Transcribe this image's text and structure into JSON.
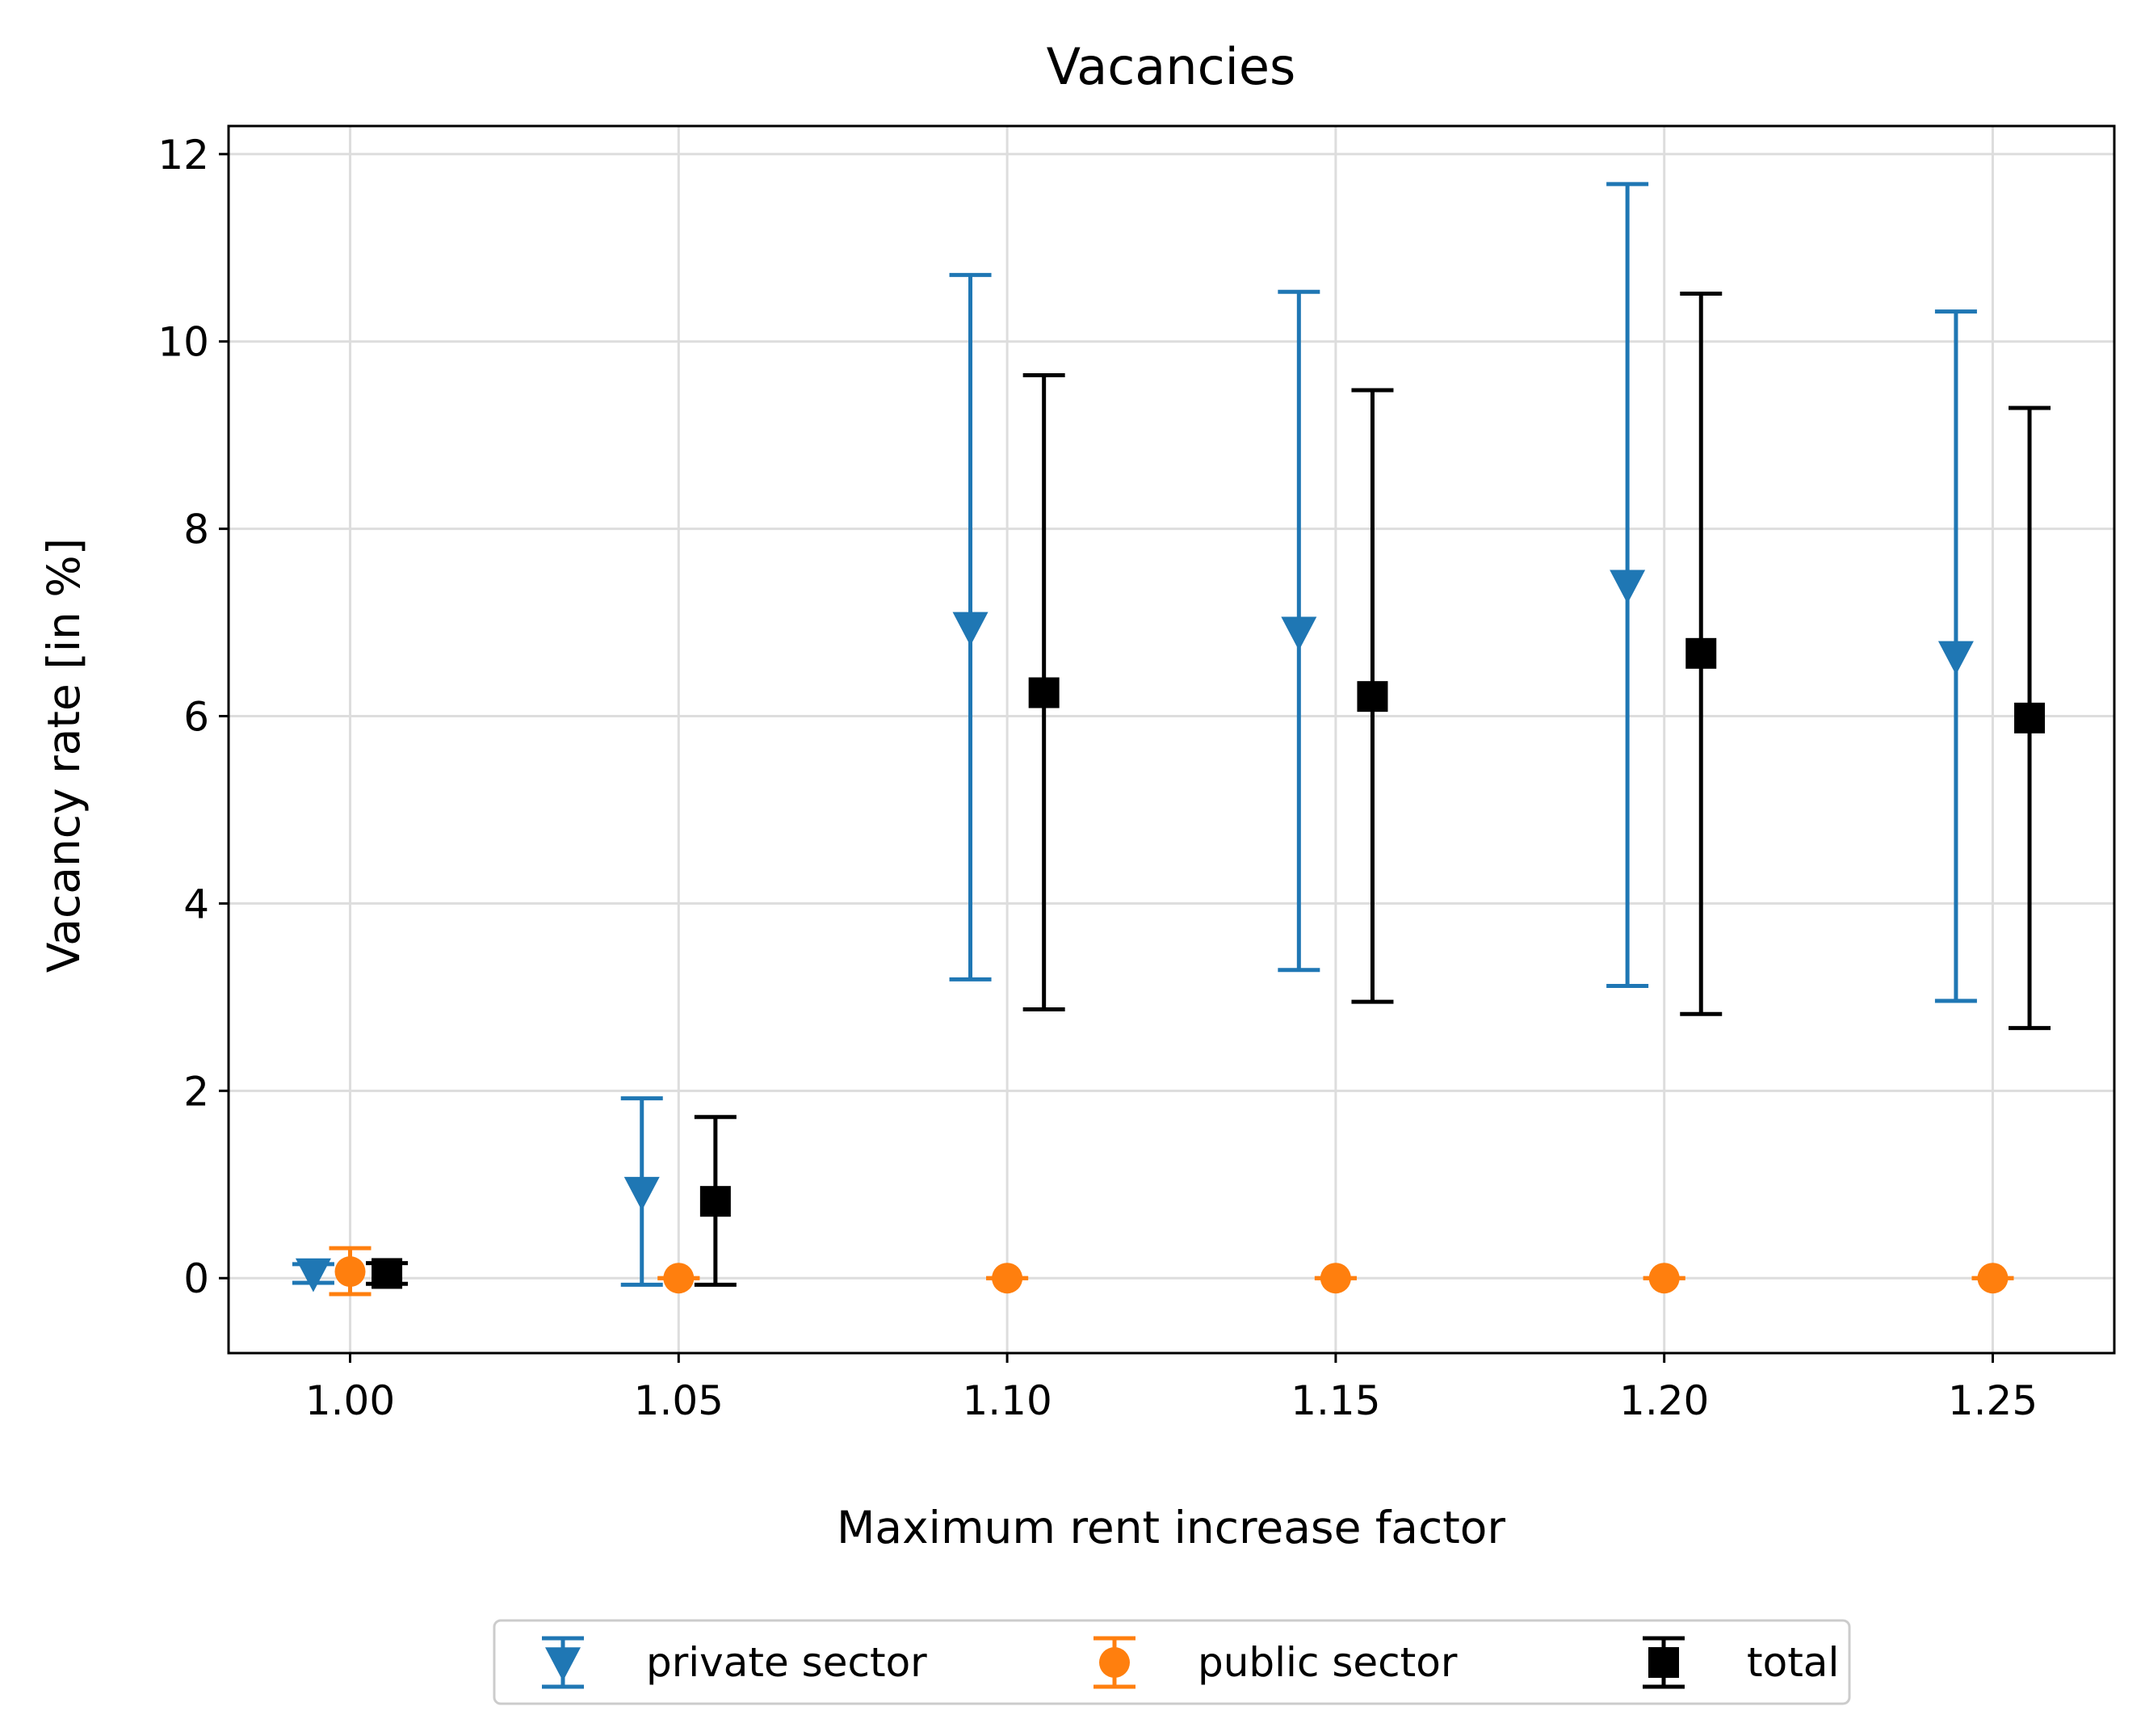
{
  "chart_data": {
    "type": "scatter",
    "title": "Vacancies",
    "xlabel": "Maximum rent increase factor",
    "ylabel": "Vacancy rate [in %]",
    "xlim": [
      0.9815,
      1.2685
    ],
    "ylim": [
      -0.8,
      12.3
    ],
    "xticks": [
      1.0,
      1.05,
      1.1,
      1.15,
      1.2,
      1.25
    ],
    "xtick_labels": [
      "1.00",
      "1.05",
      "1.10",
      "1.15",
      "1.20",
      "1.25"
    ],
    "yticks": [
      0,
      2,
      4,
      6,
      8,
      10,
      12
    ],
    "ytick_labels": [
      "0",
      "2",
      "4",
      "6",
      "8",
      "10",
      "12"
    ],
    "grid": true,
    "legend_position": "bottom-center",
    "series": [
      {
        "name": "private sector",
        "marker": "triangle-down",
        "color": "#1f77b4",
        "points": [
          {
            "x": 0.9944,
            "y": 0.05,
            "low": -0.05,
            "high": 0.15
          },
          {
            "x": 1.0444,
            "y": 0.92,
            "low": -0.07,
            "high": 1.92
          },
          {
            "x": 1.0944,
            "y": 6.95,
            "low": 3.19,
            "high": 10.71
          },
          {
            "x": 1.1444,
            "y": 6.9,
            "low": 3.29,
            "high": 10.53
          },
          {
            "x": 1.1944,
            "y": 7.4,
            "low": 3.12,
            "high": 11.68
          },
          {
            "x": 1.2444,
            "y": 6.64,
            "low": 2.96,
            "high": 10.32
          }
        ]
      },
      {
        "name": "public sector",
        "marker": "circle",
        "color": "#ff7f0e",
        "points": [
          {
            "x": 1.0,
            "y": 0.07,
            "low": -0.17,
            "high": 0.32
          },
          {
            "x": 1.05,
            "y": 0.0,
            "low": 0.0,
            "high": 0.0
          },
          {
            "x": 1.1,
            "y": 0.0,
            "low": 0.0,
            "high": 0.0
          },
          {
            "x": 1.15,
            "y": 0.0,
            "low": 0.0,
            "high": 0.0
          },
          {
            "x": 1.2,
            "y": 0.0,
            "low": 0.0,
            "high": 0.0
          },
          {
            "x": 1.25,
            "y": 0.0,
            "low": 0.0,
            "high": 0.0
          }
        ]
      },
      {
        "name": "total",
        "marker": "square",
        "color": "#000000",
        "points": [
          {
            "x": 1.0056,
            "y": 0.05,
            "low": -0.06,
            "high": 0.16
          },
          {
            "x": 1.0556,
            "y": 0.82,
            "low": -0.07,
            "high": 1.72
          },
          {
            "x": 1.1056,
            "y": 6.25,
            "low": 2.87,
            "high": 9.64
          },
          {
            "x": 1.1556,
            "y": 6.21,
            "low": 2.95,
            "high": 9.48
          },
          {
            "x": 1.2056,
            "y": 6.67,
            "low": 2.82,
            "high": 10.51
          },
          {
            "x": 1.2556,
            "y": 5.98,
            "low": 2.67,
            "high": 9.29
          }
        ]
      }
    ]
  }
}
